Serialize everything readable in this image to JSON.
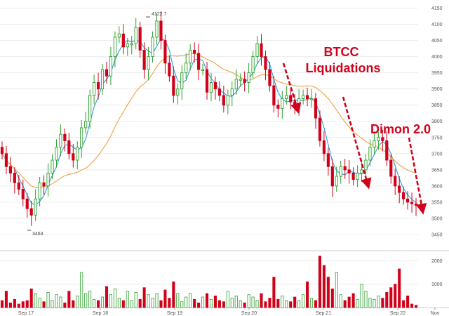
{
  "chart_data": {
    "type": "candlestick",
    "price_panel": {
      "ylim": [
        3400,
        4175
      ],
      "y_ticks": [
        3450,
        3500,
        3550,
        3600,
        3650,
        3700,
        3750,
        3800,
        3850,
        3900,
        3950,
        4000,
        4050,
        4100,
        4150
      ],
      "y_tick_labels": [
        "3450",
        "3500",
        "3550",
        "3600",
        "3650",
        "3700",
        "3750",
        "3800",
        "3850",
        "3900",
        "3950",
        "4000",
        "4050",
        "4100",
        "4150"
      ],
      "high_label": "4122.7",
      "low_label": "3463",
      "grid": true
    },
    "volume_panel": {
      "ylim": [
        0,
        2400
      ],
      "y_ticks": [
        1000,
        2000
      ],
      "y_tick_labels": [
        "1000",
        "2000"
      ],
      "grid": true
    },
    "x_tick_labels": [
      "Sep 17",
      "Sep 18",
      "Sep 19",
      "Sep 20",
      "Sep 21",
      "Sep 22",
      "Nov"
    ],
    "candle_count": 100,
    "closes": [
      3700,
      3660,
      3640,
      3610,
      3590,
      3560,
      3530,
      3510,
      3560,
      3610,
      3600,
      3640,
      3680,
      3720,
      3760,
      3740,
      3700,
      3680,
      3720,
      3780,
      3800,
      3880,
      3920,
      3900,
      3960,
      3940,
      4000,
      4060,
      4070,
      4030,
      4040,
      4040,
      4090,
      4020,
      3960,
      4000,
      4060,
      4110,
      4050,
      3980,
      3940,
      3880,
      3900,
      3950,
      3980,
      4020,
      4010,
      3960,
      3960,
      3890,
      3920,
      3900,
      3880,
      3850,
      3880,
      3900,
      3930,
      3930,
      3920,
      3950,
      4000,
      4040,
      4000,
      3960,
      3910,
      3850,
      3840,
      3870,
      3880,
      3860,
      3850,
      3870,
      3880,
      3870,
      3870,
      3810,
      3740,
      3700,
      3660,
      3600,
      3630,
      3660,
      3650,
      3640,
      3620,
      3640,
      3650,
      3680,
      3720,
      3740,
      3750,
      3740,
      3680,
      3630,
      3600,
      3580,
      3560,
      3550,
      3545,
      3540
    ],
    "volumes": [
      300,
      700,
      200,
      350,
      150,
      250,
      300,
      800,
      600,
      400,
      250,
      650,
      300,
      550,
      450,
      200,
      700,
      300,
      500,
      1500,
      600,
      700,
      350,
      300,
      450,
      900,
      550,
      800,
      400,
      300,
      700,
      300,
      650,
      350,
      850,
      550,
      400,
      600,
      300,
      750,
      400,
      1100,
      600,
      250,
      450,
      600,
      350,
      200,
      450,
      600,
      350,
      500,
      300,
      250,
      700,
      400,
      500,
      300,
      200,
      550,
      450,
      300,
      600,
      250,
      400,
      1300,
      350,
      500,
      300,
      250,
      450,
      300,
      550,
      1100,
      400,
      300,
      2200,
      1800,
      1300,
      800,
      1500,
      550,
      300,
      450,
      600,
      350,
      1000,
      700,
      400,
      350,
      500,
      400,
      650,
      850,
      1000,
      1650,
      300,
      500,
      150,
      100
    ],
    "series": [
      {
        "kind": "moving-average-short",
        "color": "#2b9bd6"
      },
      {
        "kind": "moving-average-long",
        "color": "#f0a040"
      }
    ],
    "annotations": [
      {
        "text_lines": [
          "BTCC",
          "Liquidations"
        ],
        "color": "#d0021b"
      },
      {
        "text_lines": [
          "Dimon 2.0"
        ],
        "color": "#d0021b"
      }
    ],
    "colors": {
      "up": "#2ca02c",
      "down": "#d0021b"
    }
  }
}
